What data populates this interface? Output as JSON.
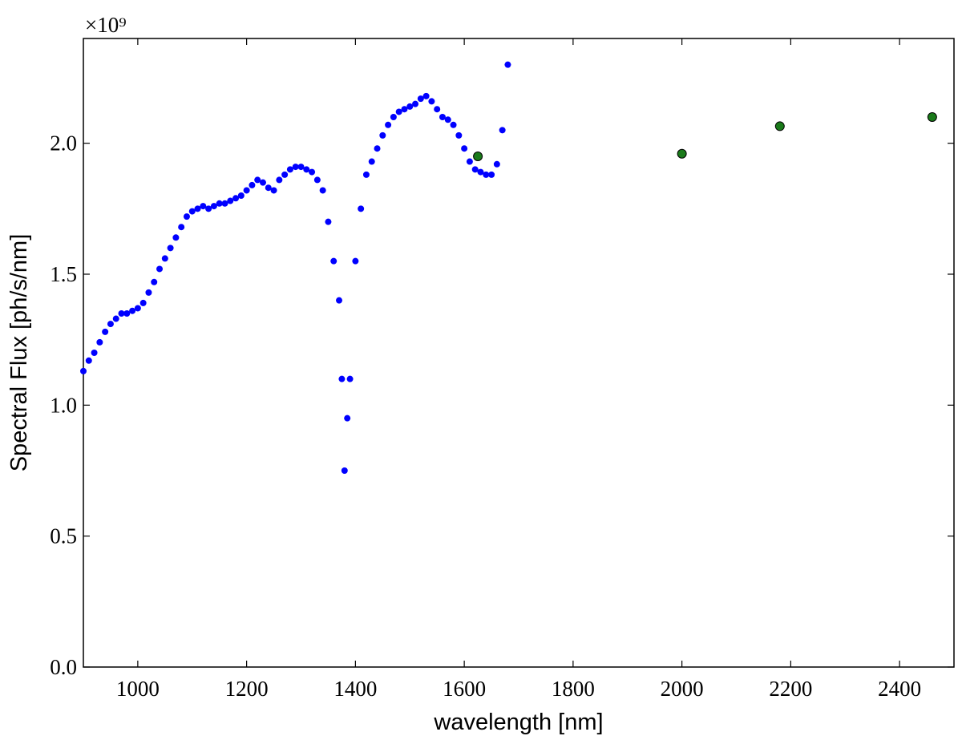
{
  "chart_data": {
    "type": "scatter",
    "x_label": "wavelength [nm]",
    "y_label": "Spectral Flux [ph/s/nm]",
    "y_offset_label": "×10⁹",
    "xlim": [
      900,
      2500
    ],
    "ylim": [
      0,
      2.4
    ],
    "xticks": [
      1000,
      1200,
      1400,
      1600,
      1800,
      2000,
      2200,
      2400
    ],
    "yticks": [
      {
        "value": 0,
        "label": "0.0"
      },
      {
        "value": 0.5,
        "label": "0.5"
      },
      {
        "value": 1,
        "label": "1.0"
      },
      {
        "value": 1.5,
        "label": "1.5"
      },
      {
        "value": 2,
        "label": "2.0"
      }
    ],
    "series": [
      {
        "color": "#0000ff",
        "x": [
          900,
          910,
          920,
          930,
          940,
          950,
          960,
          970,
          980,
          990,
          1000,
          1010,
          1020,
          1030,
          1040,
          1050,
          1060,
          1070,
          1080,
          1090,
          1100,
          1110,
          1120,
          1130,
          1140,
          1150,
          1160,
          1170,
          1180,
          1190,
          1200,
          1210,
          1220,
          1230,
          1240,
          1250,
          1260,
          1270,
          1280,
          1290,
          1300,
          1310,
          1320,
          1330,
          1340,
          1350,
          1360,
          1370,
          1375,
          1380,
          1385,
          1390,
          1400,
          1410,
          1420,
          1430,
          1440,
          1450,
          1460,
          1470,
          1480,
          1490,
          1500,
          1510,
          1520,
          1530,
          1540,
          1550,
          1560,
          1570,
          1580,
          1590,
          1600,
          1610,
          1620,
          1630,
          1640,
          1650,
          1660,
          1670,
          1680
        ],
        "values": [
          1.13,
          1.17,
          1.2,
          1.24,
          1.28,
          1.31,
          1.33,
          1.35,
          1.35,
          1.36,
          1.37,
          1.39,
          1.43,
          1.47,
          1.52,
          1.56,
          1.6,
          1.64,
          1.68,
          1.72,
          1.74,
          1.75,
          1.76,
          1.75,
          1.76,
          1.77,
          1.77,
          1.78,
          1.79,
          1.8,
          1.82,
          1.84,
          1.86,
          1.85,
          1.83,
          1.82,
          1.86,
          1.88,
          1.9,
          1.91,
          1.91,
          1.9,
          1.89,
          1.86,
          1.82,
          1.7,
          1.55,
          1.4,
          1.1,
          0.75,
          0.95,
          1.1,
          1.55,
          1.75,
          1.88,
          1.93,
          1.98,
          2.03,
          2.07,
          2.1,
          2.12,
          2.13,
          2.14,
          2.15,
          2.17,
          2.18,
          2.16,
          2.13,
          2.1,
          2.09,
          2.07,
          2.03,
          1.98,
          1.93,
          1.9,
          1.89,
          1.88,
          1.88,
          1.92,
          2.05,
          2.3
        ]
      },
      {
        "color": "#1a7a1a",
        "x": [
          1625,
          2000,
          2180,
          2460
        ],
        "values": [
          1.95,
          1.96,
          2.065,
          2.1
        ]
      }
    ]
  }
}
